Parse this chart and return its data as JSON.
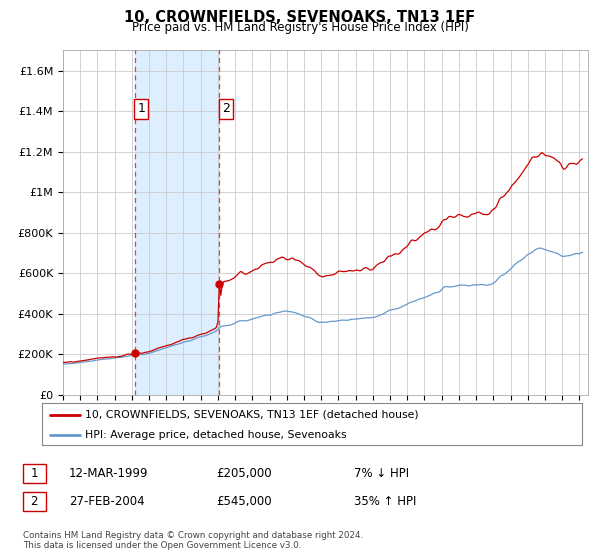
{
  "title": "10, CROWNFIELDS, SEVENOAKS, TN13 1EF",
  "subtitle": "Price paid vs. HM Land Registry's House Price Index (HPI)",
  "legend_line1": "10, CROWNFIELDS, SEVENOAKS, TN13 1EF (detached house)",
  "legend_line2": "HPI: Average price, detached house, Sevenoaks",
  "transaction1_date": "12-MAR-1999",
  "transaction1_price": "£205,000",
  "transaction1_hpi": "7% ↓ HPI",
  "transaction2_date": "27-FEB-2004",
  "transaction2_price": "£545,000",
  "transaction2_hpi": "35% ↑ HPI",
  "footer": "Contains HM Land Registry data © Crown copyright and database right 2024.\nThis data is licensed under the Open Government Licence v3.0.",
  "price_color": "#cc0000",
  "hpi_color": "#6699cc",
  "vline_color": "#cc0000",
  "marker_color": "#cc0000",
  "box_color": "#cc0000",
  "ylim_max": 1700000,
  "background_color": "#ffffff",
  "plot_bg_color": "#ffffff",
  "grid_color": "#cccccc",
  "span_color": "#ddeeff"
}
